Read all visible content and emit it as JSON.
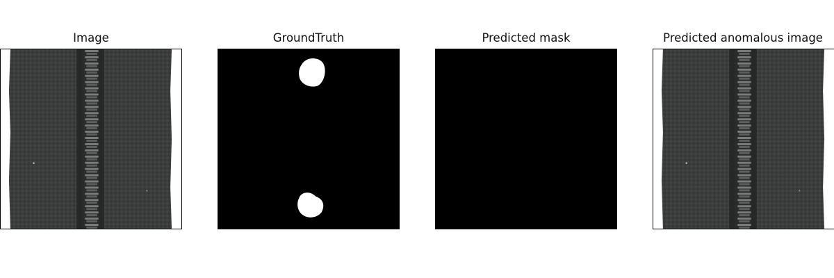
{
  "panels": [
    {
      "title": "Image",
      "content": "zipper-photo"
    },
    {
      "title": "GroundTruth",
      "content": "ground-truth-mask"
    },
    {
      "title": "Predicted mask",
      "content": "empty-mask"
    },
    {
      "title": "Predicted anomalous image",
      "content": "zipper-photo"
    }
  ],
  "colors": {
    "fabric": "#3b3d3d",
    "teeth": "#707272",
    "mask_background": "#000000",
    "mask_region": "#ffffff"
  }
}
